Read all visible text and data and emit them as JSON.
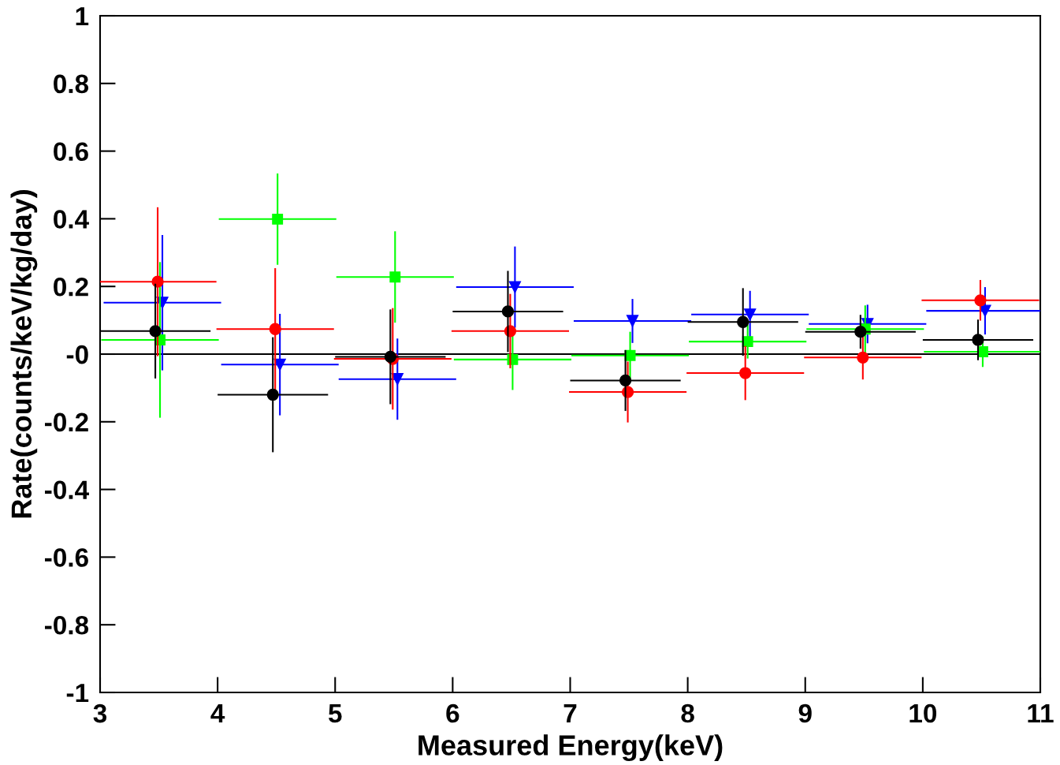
{
  "chart_data": {
    "type": "scatter",
    "xlabel": "Measured Energy(keV)",
    "ylabel": "Rate(counts/keV/kg/day)",
    "xlim": [
      3,
      11
    ],
    "xticks": [
      3,
      4,
      5,
      6,
      7,
      8,
      9,
      10,
      11
    ],
    "ylim": [
      -1,
      1
    ],
    "yticks": [
      {
        "value": -1,
        "label": "-1"
      },
      {
        "value": -0.8,
        "label": "-0.8"
      },
      {
        "value": -0.6,
        "label": "-0.6"
      },
      {
        "value": -0.4,
        "label": "-0.4"
      },
      {
        "value": -0.2,
        "label": "-0.2"
      },
      {
        "value": 0,
        "label": "-0"
      },
      0.2,
      0.4,
      0.6,
      0.8,
      1
    ],
    "grid": false,
    "legend": false,
    "series": [
      {
        "type": "line",
        "color": "#000000",
        "marker": "none",
        "x": [
          3,
          11
        ],
        "values": [
          0,
          0
        ]
      },
      {
        "color": "#000000",
        "marker": "circle",
        "x": [
          3.47,
          4.47,
          5.47,
          6.47,
          7.47,
          8.47,
          9.47,
          10.47
        ],
        "values": [
          0.068,
          -0.12,
          -0.008,
          0.126,
          -0.078,
          0.095,
          0.066,
          0.042
        ],
        "errors": [
          0.14,
          0.17,
          0.14,
          0.12,
          0.09,
          0.1,
          0.05,
          0.06
        ],
        "xerrors": [
          0.47,
          0.47,
          0.47,
          0.47,
          0.47,
          0.47,
          0.47,
          0.47
        ]
      },
      {
        "color": "#ff0000",
        "marker": "circle",
        "x": [
          3.49,
          4.49,
          5.49,
          6.49,
          7.49,
          8.49,
          9.49,
          10.49
        ],
        "values": [
          0.214,
          0.074,
          -0.014,
          0.068,
          -0.112,
          -0.056,
          -0.01,
          0.159
        ],
        "errors": [
          0.22,
          0.18,
          0.15,
          0.11,
          0.09,
          0.08,
          0.065,
          0.06
        ],
        "xerrors": [
          0.5,
          0.5,
          0.5,
          0.5,
          0.5,
          0.5,
          0.5,
          0.5
        ]
      },
      {
        "color": "#00ff00",
        "marker": "square",
        "x": [
          3.51,
          4.51,
          5.51,
          6.51,
          7.51,
          8.51,
          9.51,
          10.51
        ],
        "values": [
          0.042,
          0.399,
          0.228,
          -0.016,
          -0.004,
          0.037,
          0.074,
          0.007
        ],
        "errors": [
          0.23,
          0.135,
          0.135,
          0.09,
          0.07,
          0.05,
          0.07,
          0.045
        ],
        "xerrors": [
          0.5,
          0.5,
          0.5,
          0.5,
          0.5,
          0.5,
          0.5,
          0.5
        ]
      },
      {
        "color": "#0000ff",
        "marker": "triangle",
        "x": [
          3.53,
          4.53,
          5.53,
          6.53,
          7.53,
          8.53,
          9.53,
          10.53
        ],
        "values": [
          0.152,
          -0.031,
          -0.074,
          0.198,
          0.098,
          0.117,
          0.089,
          0.128
        ],
        "errors": [
          0.2,
          0.15,
          0.12,
          0.12,
          0.065,
          0.07,
          0.057,
          0.07
        ],
        "xerrors": [
          0.5,
          0.5,
          0.5,
          0.5,
          0.5,
          0.5,
          0.5,
          0.5
        ]
      }
    ]
  }
}
